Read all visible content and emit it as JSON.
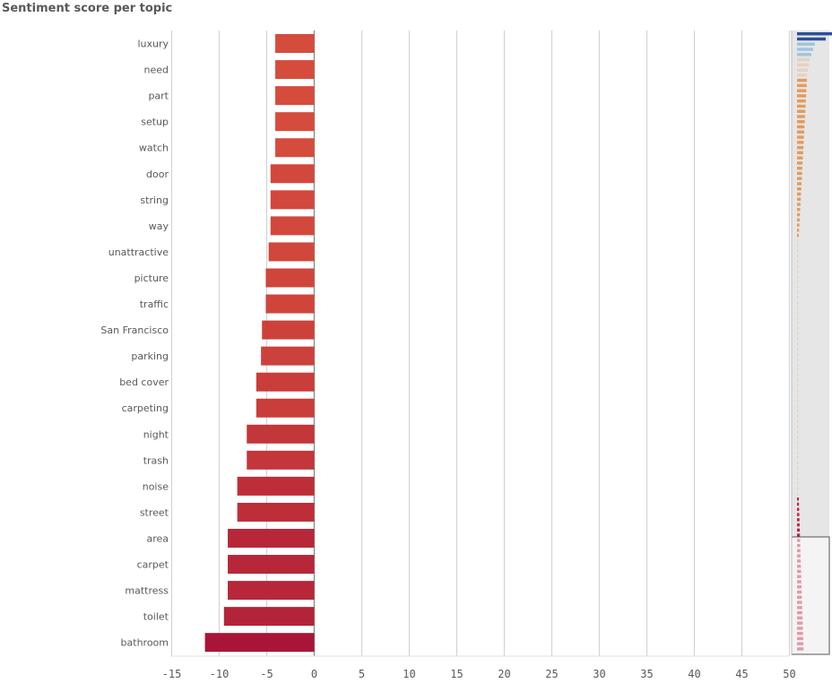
{
  "chart_data": {
    "type": "bar",
    "orientation": "horizontal",
    "title": "Sentiment score per topic",
    "categories": [
      "luxury",
      "need",
      "part",
      "setup",
      "watch",
      "door",
      "string",
      "way",
      "unattractive",
      "picture",
      "traffic",
      "San Francisco",
      "parking",
      "bed cover",
      "carpeting",
      "night",
      "trash",
      "noise",
      "street",
      "area",
      "carpet",
      "mattress",
      "toilet",
      "bathroom"
    ],
    "values": [
      -4.1,
      -4.1,
      -4.1,
      -4.1,
      -4.1,
      -4.6,
      -4.6,
      -4.6,
      -4.8,
      -5.1,
      -5.1,
      -5.5,
      -5.6,
      -6.1,
      -6.1,
      -7.1,
      -7.1,
      -8.1,
      -8.1,
      -9.1,
      -9.1,
      -9.1,
      -9.5,
      -11.5
    ],
    "xlim": [
      -15,
      50
    ],
    "xticks": [
      "-15",
      "-10",
      "-5",
      "0",
      "5",
      "10",
      "15",
      "20",
      "25",
      "30",
      "35",
      "40",
      "45",
      "50"
    ],
    "grid": true,
    "legend": "none",
    "colors": {
      "low": "#a81537",
      "high": "#d54c3c"
    },
    "overview": {
      "type": "mini-bar",
      "selected": "bottom",
      "colors": {
        "positive": "#2c4f99",
        "light": "#9ec5de",
        "neutral": "#e6d2c2",
        "orange": "#e69a5c",
        "negative": "#c4213f"
      }
    }
  }
}
